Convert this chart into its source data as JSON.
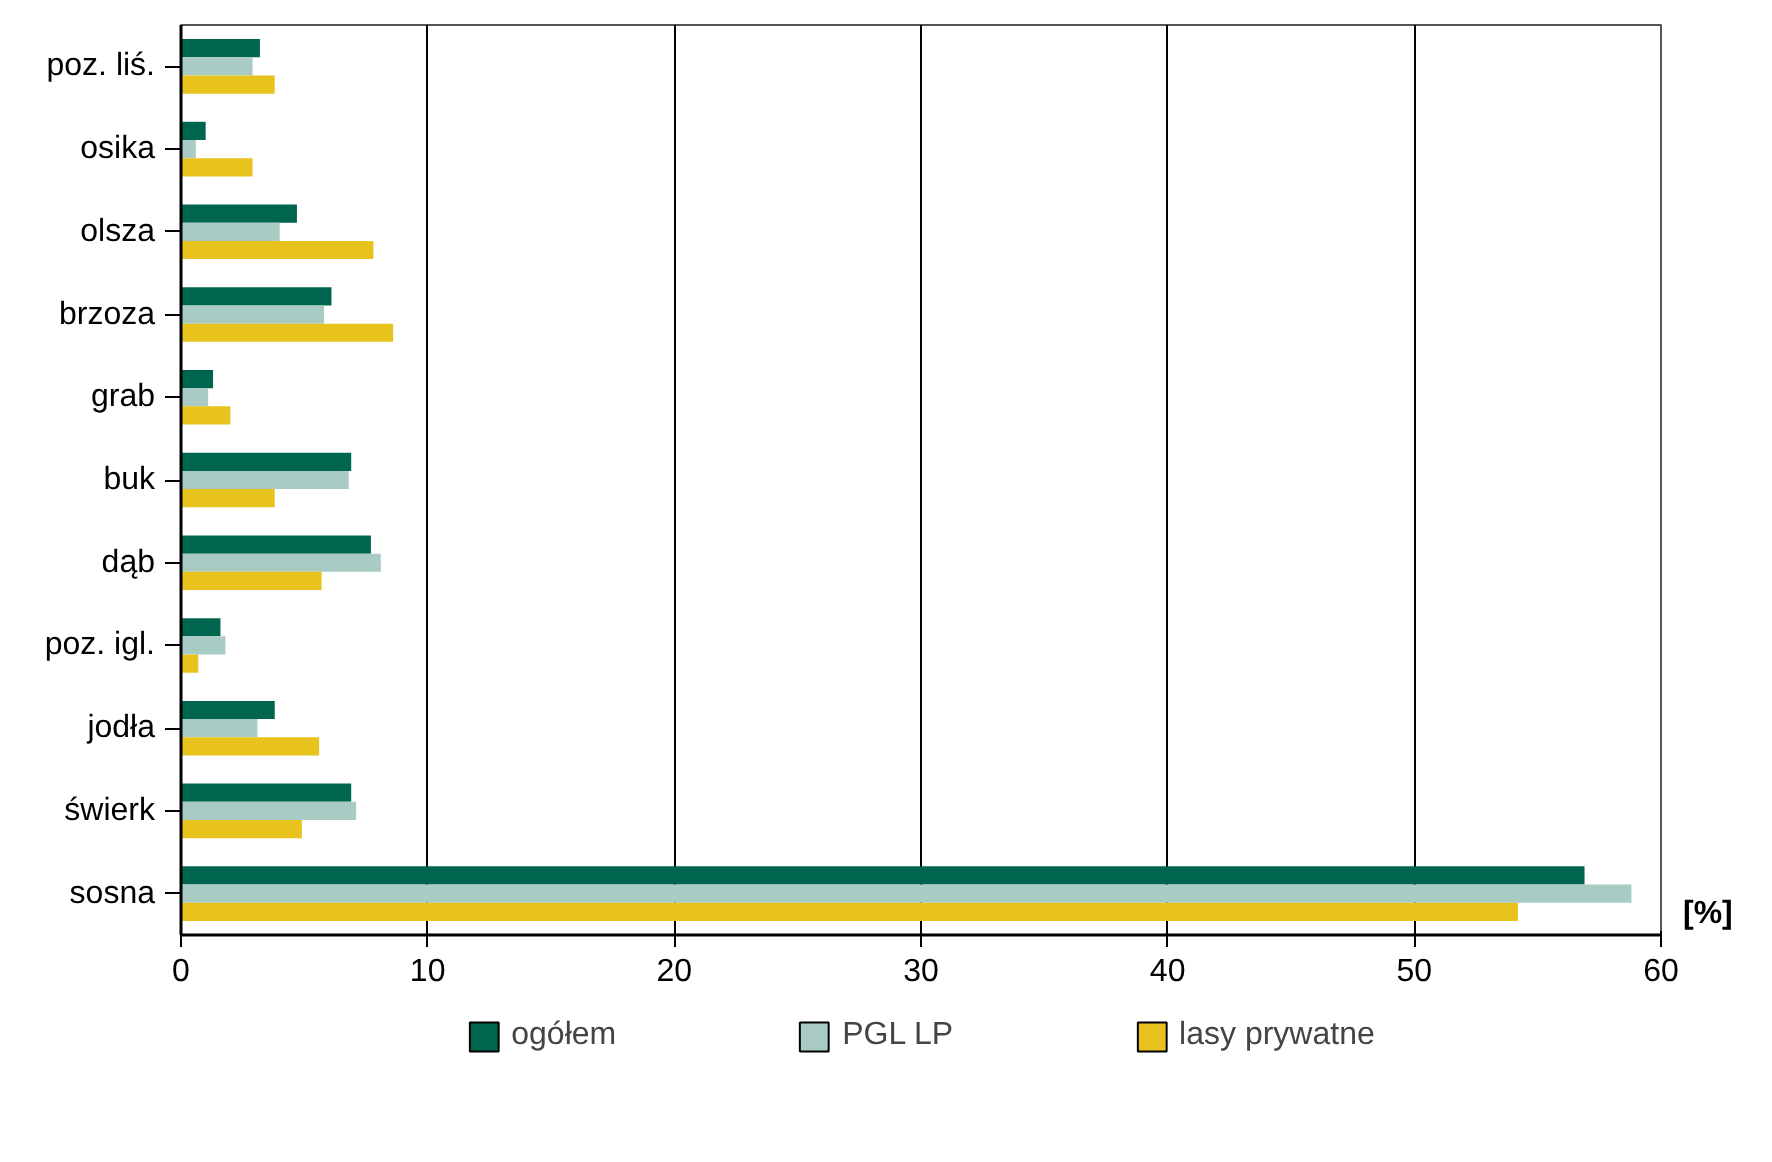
{
  "chart_data": {
    "type": "bar",
    "orientation": "horizontal",
    "xlabel": "[%]",
    "categories": [
      "poz. liś.",
      "osika",
      "olsza",
      "brzoza",
      "grab",
      "buk",
      "dąb",
      "poz. igl.",
      "jodła",
      "świerk",
      "sosna"
    ],
    "series": [
      {
        "name": "ogółem",
        "color": "#00654f",
        "values": [
          3.2,
          1.0,
          4.7,
          6.1,
          1.3,
          6.9,
          7.7,
          1.6,
          3.8,
          6.9,
          56.9
        ]
      },
      {
        "name": "PGL LP",
        "color": "#a8cbc4",
        "values": [
          2.9,
          0.6,
          4.0,
          5.8,
          1.1,
          6.8,
          8.1,
          1.8,
          3.1,
          7.1,
          58.8
        ]
      },
      {
        "name": "lasy prywatne",
        "color": "#e8c31e",
        "values": [
          3.8,
          2.9,
          7.8,
          8.6,
          2.0,
          3.8,
          5.7,
          0.7,
          5.6,
          4.9,
          54.2
        ]
      }
    ],
    "xlim": [
      0,
      60
    ],
    "xticks": [
      0,
      10,
      20,
      30,
      40,
      50,
      60
    ],
    "grid": "x",
    "legend": "bottom"
  }
}
